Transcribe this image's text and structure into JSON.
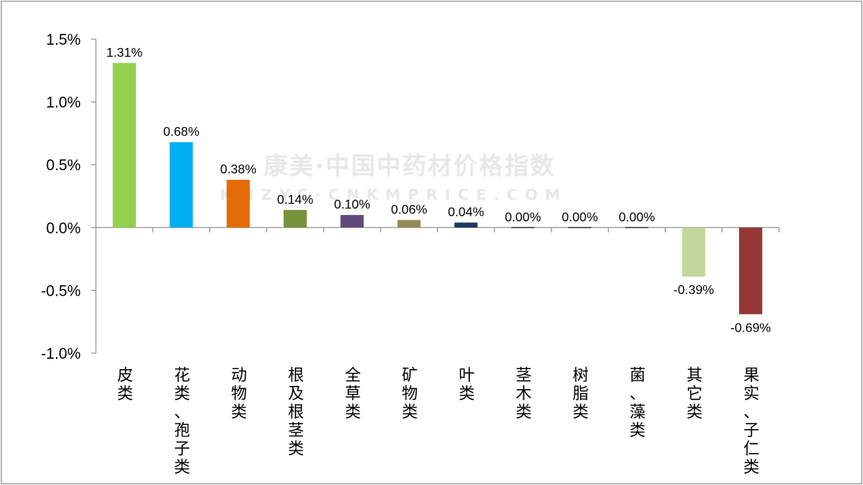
{
  "chart_data": {
    "type": "bar",
    "categories": [
      "皮类",
      "花类、孢子类",
      "动物类",
      "根及根茎类",
      "全草类",
      "矿物类",
      "叶类",
      "茎木类",
      "树脂类",
      "菌、藻类",
      "其它类",
      "果实、子仁类"
    ],
    "values": [
      1.31,
      0.68,
      0.38,
      0.14,
      0.1,
      0.06,
      0.04,
      0.0,
      0.0,
      0.0,
      -0.39,
      -0.69
    ],
    "data_labels": [
      "1.31%",
      "0.68%",
      "0.38%",
      "0.14%",
      "0.10%",
      "0.06%",
      "0.04%",
      "0.00%",
      "0.00%",
      "0.00%",
      "-0.39%",
      "-0.69%"
    ],
    "colors": [
      "#92d050",
      "#00b0f0",
      "#e36c09",
      "#77933c",
      "#604a7b",
      "#948a54",
      "#1f3864",
      "#000000",
      "#000000",
      "#000000",
      "#c3d69b",
      "#953735"
    ],
    "yticks": [
      1.5,
      1.0,
      0.5,
      0.0,
      -0.5,
      -1.0
    ],
    "ytick_labels": [
      "1.5%",
      "1.0%",
      "0.5%",
      "0.0%",
      "-0.5%",
      "-1.0%"
    ],
    "ylim": [
      -1.0,
      1.5
    ],
    "grid": false,
    "title": "",
    "xlabel": "",
    "ylabel": ""
  },
  "watermark": {
    "line1": "康美·中国中药材价格指数",
    "line2": "KMZYC·CNKMPRICE.COM"
  }
}
